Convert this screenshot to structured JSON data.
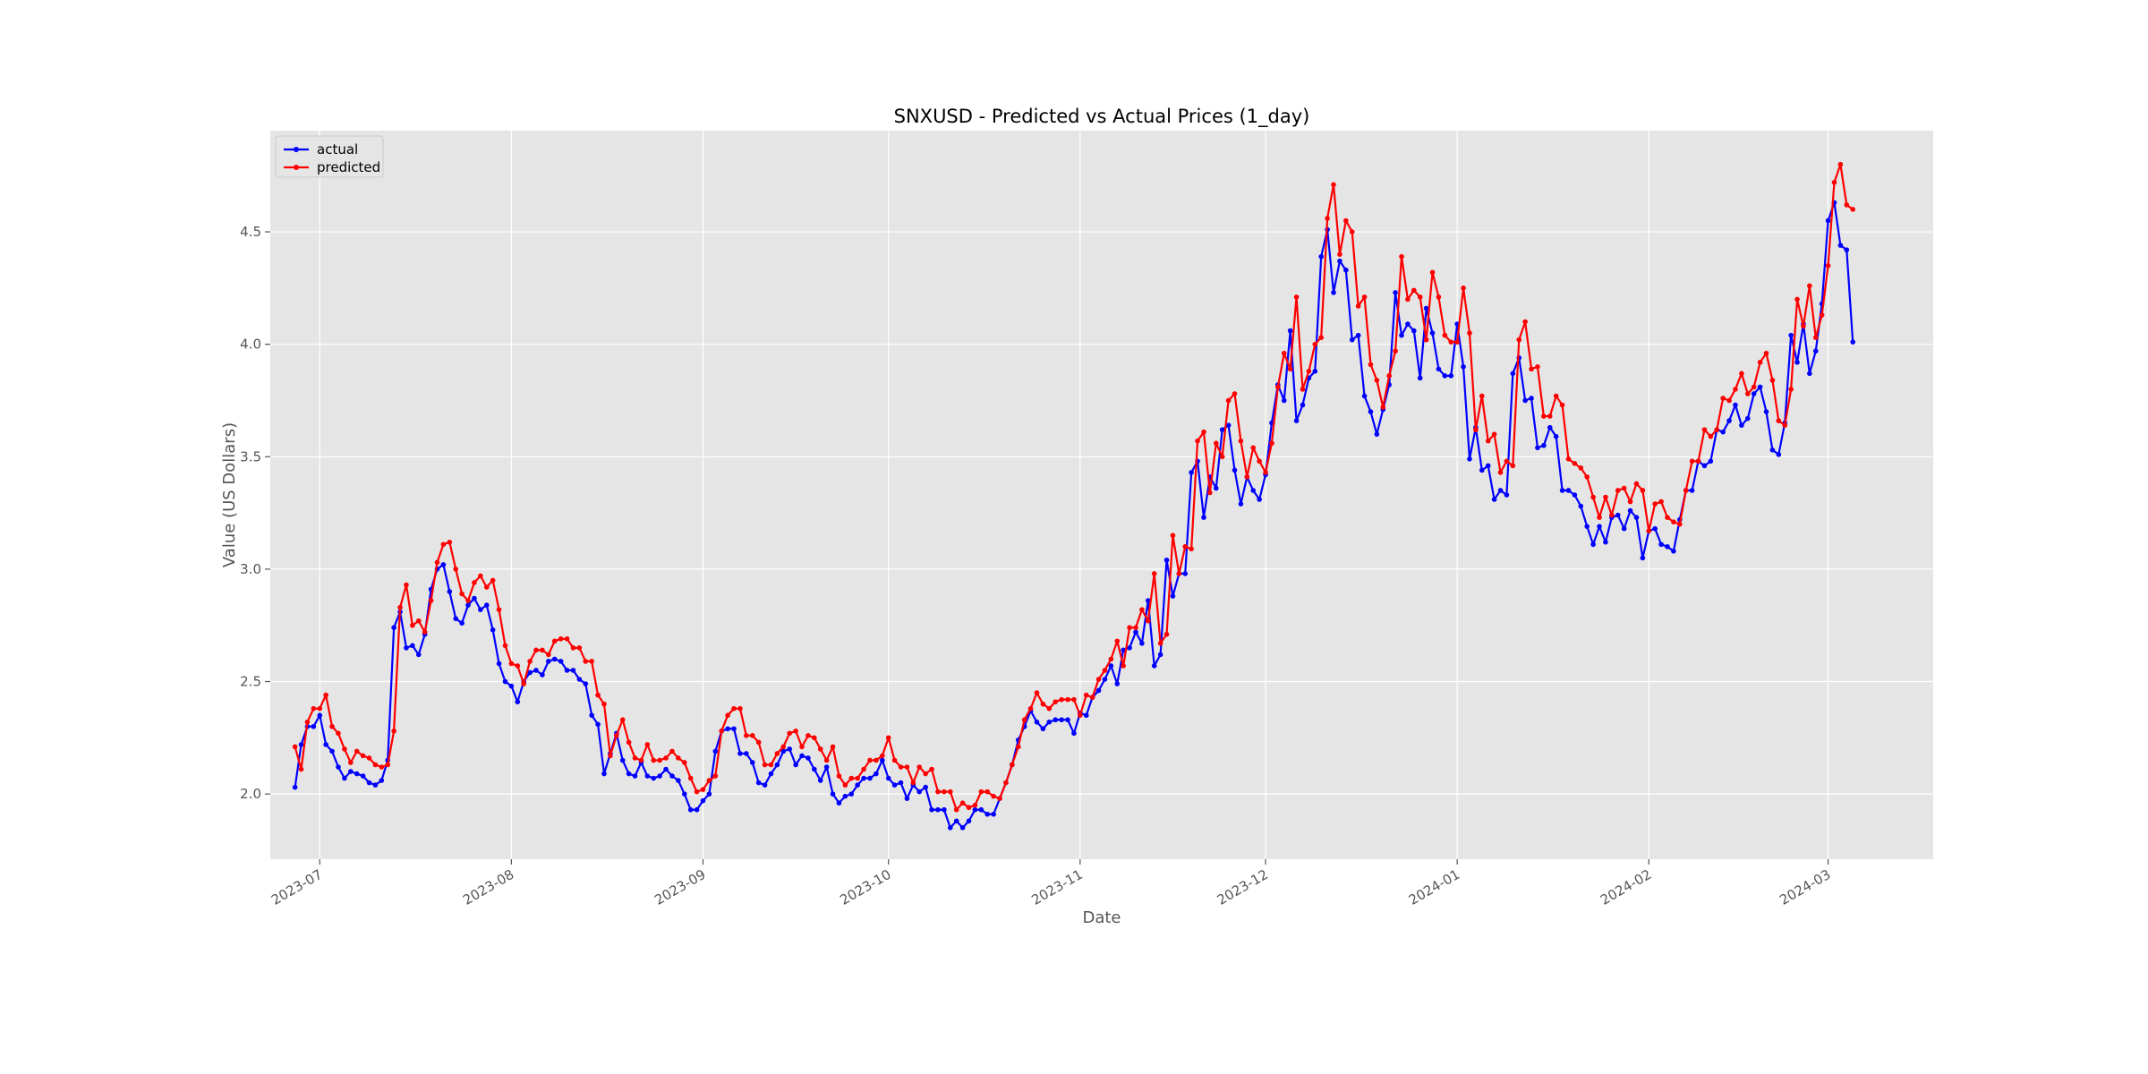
{
  "chart_data": {
    "type": "line",
    "title": "SNXUSD - Predicted vs Actual Prices (1_day)",
    "xlabel": "Date",
    "ylabel": "Value (US Dollars)",
    "x_type": "date",
    "x_range": [
      "2023-06-23",
      "2024-03-18"
    ],
    "ylim": [
      1.71,
      4.95
    ],
    "y_ticks": [
      2.0,
      2.5,
      3.0,
      3.5,
      4.0,
      4.5
    ],
    "x_ticks": [
      {
        "date": "2023-07-01",
        "label": "2023-07"
      },
      {
        "date": "2023-08-01",
        "label": "2023-08"
      },
      {
        "date": "2023-09-01",
        "label": "2023-09"
      },
      {
        "date": "2023-10-01",
        "label": "2023-10"
      },
      {
        "date": "2023-11-01",
        "label": "2023-11"
      },
      {
        "date": "2023-12-01",
        "label": "2023-12"
      },
      {
        "date": "2024-01-01",
        "label": "2024-01"
      },
      {
        "date": "2024-02-01",
        "label": "2024-02"
      },
      {
        "date": "2024-03-01",
        "label": "2024-03"
      }
    ],
    "grid": true,
    "background_color": "#e5e5e5",
    "legend_position": "top-left",
    "x_start": "2023-06-27",
    "series": [
      {
        "name": "actual",
        "color": "#0000ff",
        "values": [
          2.03,
          2.22,
          2.3,
          2.3,
          2.35,
          2.22,
          2.19,
          2.12,
          2.07,
          2.1,
          2.09,
          2.08,
          2.05,
          2.04,
          2.06,
          2.15,
          2.74,
          2.81,
          2.65,
          2.66,
          2.62,
          2.71,
          2.91,
          3.0,
          3.02,
          2.9,
          2.78,
          2.76,
          2.84,
          2.87,
          2.82,
          2.84,
          2.73,
          2.58,
          2.5,
          2.48,
          2.41,
          2.5,
          2.54,
          2.55,
          2.53,
          2.59,
          2.6,
          2.59,
          2.55,
          2.55,
          2.51,
          2.49,
          2.35,
          2.31,
          2.09,
          2.18,
          2.27,
          2.15,
          2.09,
          2.08,
          2.14,
          2.08,
          2.07,
          2.08,
          2.11,
          2.08,
          2.06,
          2.0,
          1.93,
          1.93,
          1.97,
          2.0,
          2.19,
          2.28,
          2.29,
          2.29,
          2.18,
          2.18,
          2.14,
          2.05,
          2.04,
          2.09,
          2.13,
          2.19,
          2.2,
          2.13,
          2.17,
          2.16,
          2.11,
          2.06,
          2.12,
          2.0,
          1.96,
          1.99,
          2.0,
          2.04,
          2.07,
          2.07,
          2.09,
          2.15,
          2.07,
          2.04,
          2.05,
          1.98,
          2.04,
          2.01,
          2.03,
          1.93,
          1.93,
          1.93,
          1.85,
          1.88,
          1.85,
          1.88,
          1.93,
          1.93,
          1.91,
          1.91,
          1.98,
          2.05,
          2.13,
          2.24,
          2.3,
          2.37,
          2.32,
          2.29,
          2.32,
          2.33,
          2.33,
          2.33,
          2.27,
          2.36,
          2.35,
          2.43,
          2.46,
          2.51,
          2.57,
          2.49,
          2.64,
          2.65,
          2.72,
          2.67,
          2.86,
          2.57,
          2.62,
          3.04,
          2.88,
          2.98,
          2.98,
          3.43,
          3.48,
          3.23,
          3.41,
          3.36,
          3.62,
          3.64,
          3.44,
          3.29,
          3.41,
          3.35,
          3.31,
          3.42,
          3.65,
          3.82,
          3.75,
          4.06,
          3.66,
          3.73,
          3.85,
          3.88,
          4.39,
          4.51,
          4.23,
          4.37,
          4.33,
          4.02,
          4.04,
          3.77,
          3.7,
          3.6,
          3.71,
          3.82,
          4.23,
          4.04,
          4.09,
          4.06,
          3.85,
          4.16,
          4.05,
          3.89,
          3.86,
          3.86,
          4.09,
          3.9,
          3.49,
          3.63,
          3.44,
          3.46,
          3.31,
          3.35,
          3.33,
          3.87,
          3.94,
          3.75,
          3.76,
          3.54,
          3.55,
          3.63,
          3.59,
          3.35,
          3.35,
          3.33,
          3.28,
          3.19,
          3.11,
          3.19,
          3.12,
          3.23,
          3.24,
          3.18,
          3.26,
          3.23,
          3.05,
          3.17,
          3.18,
          3.11,
          3.1,
          3.08,
          3.22,
          3.35,
          3.35,
          3.48,
          3.46,
          3.48,
          3.62,
          3.61,
          3.66,
          3.73,
          3.64,
          3.67,
          3.78,
          3.81,
          3.7,
          3.53,
          3.51,
          3.65,
          4.04,
          3.92,
          4.09,
          3.87,
          3.97,
          4.18,
          4.55,
          4.63,
          4.44,
          4.42,
          4.01
        ]
      },
      {
        "name": "predicted",
        "color": "#ff0000",
        "values": [
          2.21,
          2.11,
          2.32,
          2.38,
          2.38,
          2.44,
          2.3,
          2.27,
          2.2,
          2.14,
          2.19,
          2.17,
          2.16,
          2.13,
          2.12,
          2.13,
          2.28,
          2.83,
          2.93,
          2.75,
          2.77,
          2.72,
          2.86,
          3.03,
          3.11,
          3.12,
          3.0,
          2.89,
          2.86,
          2.94,
          2.97,
          2.92,
          2.95,
          2.82,
          2.66,
          2.58,
          2.57,
          2.49,
          2.59,
          2.64,
          2.64,
          2.62,
          2.68,
          2.69,
          2.69,
          2.65,
          2.65,
          2.59,
          2.59,
          2.44,
          2.4,
          2.17,
          2.26,
          2.33,
          2.23,
          2.16,
          2.15,
          2.22,
          2.15,
          2.15,
          2.16,
          2.19,
          2.16,
          2.14,
          2.07,
          2.01,
          2.02,
          2.06,
          2.08,
          2.28,
          2.35,
          2.38,
          2.38,
          2.26,
          2.26,
          2.23,
          2.13,
          2.13,
          2.18,
          2.21,
          2.27,
          2.28,
          2.21,
          2.26,
          2.25,
          2.2,
          2.15,
          2.21,
          2.08,
          2.04,
          2.07,
          2.07,
          2.11,
          2.15,
          2.15,
          2.17,
          2.25,
          2.15,
          2.12,
          2.12,
          2.05,
          2.12,
          2.09,
          2.11,
          2.01,
          2.01,
          2.01,
          1.93,
          1.96,
          1.94,
          1.95,
          2.01,
          2.01,
          1.99,
          1.98,
          2.05,
          2.13,
          2.21,
          2.33,
          2.38,
          2.45,
          2.4,
          2.38,
          2.41,
          2.42,
          2.42,
          2.42,
          2.35,
          2.44,
          2.43,
          2.51,
          2.55,
          2.6,
          2.68,
          2.57,
          2.74,
          2.74,
          2.82,
          2.77,
          2.98,
          2.67,
          2.71,
          3.15,
          2.98,
          3.1,
          3.09,
          3.57,
          3.61,
          3.34,
          3.56,
          3.5,
          3.75,
          3.78,
          3.57,
          3.41,
          3.54,
          3.48,
          3.43,
          3.56,
          3.81,
          3.96,
          3.89,
          4.21,
          3.8,
          3.88,
          4.0,
          4.03,
          4.56,
          4.71,
          4.4,
          4.55,
          4.5,
          4.17,
          4.21,
          3.91,
          3.84,
          3.72,
          3.86,
          3.97,
          4.39,
          4.2,
          4.24,
          4.21,
          4.02,
          4.32,
          4.21,
          4.04,
          4.01,
          4.01,
          4.25,
          4.05,
          3.62,
          3.77,
          3.57,
          3.6,
          3.43,
          3.48,
          3.46,
          4.02,
          4.1,
          3.89,
          3.9,
          3.68,
          3.68,
          3.77,
          3.73,
          3.49,
          3.47,
          3.45,
          3.41,
          3.32,
          3.23,
          3.32,
          3.24,
          3.35,
          3.36,
          3.3,
          3.38,
          3.35,
          3.17,
          3.29,
          3.3,
          3.23,
          3.21,
          3.2,
          3.35,
          3.48,
          3.48,
          3.62,
          3.59,
          3.62,
          3.76,
          3.75,
          3.8,
          3.87,
          3.78,
          3.81,
          3.92,
          3.96,
          3.84,
          3.66,
          3.64,
          3.8,
          4.2,
          4.08,
          4.26,
          4.03,
          4.13,
          4.35,
          4.72,
          4.8,
          4.62,
          4.6
        ]
      }
    ]
  }
}
